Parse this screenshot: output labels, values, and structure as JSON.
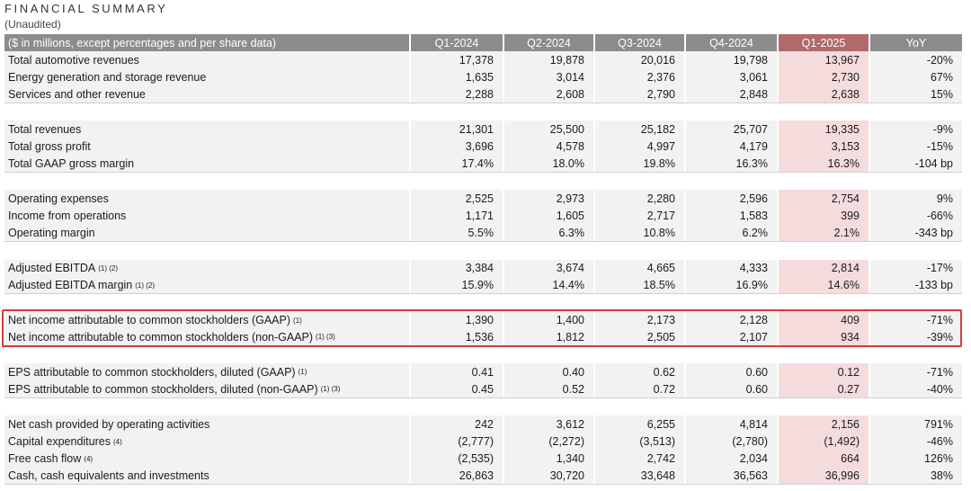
{
  "title": "FINANCIAL SUMMARY",
  "subtitle": "(Unaudited)",
  "header": {
    "label": "($ in millions, except percentages and per share data)",
    "cols": [
      "Q1-2024",
      "Q2-2024",
      "Q3-2024",
      "Q4-2024",
      "Q1-2025",
      "YoY"
    ]
  },
  "groups": [
    [
      {
        "label": "Total automotive revenues",
        "sup": "",
        "v": [
          "17,378",
          "19,878",
          "20,016",
          "19,798",
          "13,967",
          "-20%"
        ]
      },
      {
        "label": "Energy generation and storage revenue",
        "sup": "",
        "v": [
          "1,635",
          "3,014",
          "2,376",
          "3,061",
          "2,730",
          "67%"
        ]
      },
      {
        "label": "Services and other revenue",
        "sup": "",
        "v": [
          "2,288",
          "2,608",
          "2,790",
          "2,848",
          "2,638",
          "15%"
        ]
      }
    ],
    [
      {
        "label": "Total revenues",
        "sup": "",
        "v": [
          "21,301",
          "25,500",
          "25,182",
          "25,707",
          "19,335",
          "-9%"
        ]
      },
      {
        "label": "Total gross profit",
        "sup": "",
        "v": [
          "3,696",
          "4,578",
          "4,997",
          "4,179",
          "3,153",
          "-15%"
        ]
      },
      {
        "label": "Total GAAP gross margin",
        "sup": "",
        "v": [
          "17.4%",
          "18.0%",
          "19.8%",
          "16.3%",
          "16.3%",
          "-104 bp"
        ]
      }
    ],
    [
      {
        "label": "Operating expenses",
        "sup": "",
        "v": [
          "2,525",
          "2,973",
          "2,280",
          "2,596",
          "2,754",
          "9%"
        ]
      },
      {
        "label": "Income from operations",
        "sup": "",
        "v": [
          "1,171",
          "1,605",
          "2,717",
          "1,583",
          "399",
          "-66%"
        ]
      },
      {
        "label": "Operating margin",
        "sup": "",
        "v": [
          "5.5%",
          "6.3%",
          "10.8%",
          "6.2%",
          "2.1%",
          "-343 bp"
        ]
      }
    ],
    [
      {
        "label": "Adjusted EBITDA",
        "sup": "(1) (2)",
        "v": [
          "3,384",
          "3,674",
          "4,665",
          "4,333",
          "2,814",
          "-17%"
        ]
      },
      {
        "label": "Adjusted EBITDA margin",
        "sup": "(1) (2)",
        "v": [
          "15.9%",
          "14.4%",
          "18.5%",
          "16.9%",
          "14.6%",
          "-133 bp"
        ]
      }
    ],
    [
      {
        "label": "Net income attributable to common stockholders (GAAP)",
        "sup": "(1)",
        "v": [
          "1,390",
          "1,400",
          "2,173",
          "2,128",
          "409",
          "-71%"
        ]
      },
      {
        "label": "Net income attributable to common stockholders (non-GAAP)",
        "sup": "(1) (3)",
        "v": [
          "1,536",
          "1,812",
          "2,505",
          "2,107",
          "934",
          "-39%"
        ]
      }
    ],
    [
      {
        "label": "EPS attributable to common stockholders, diluted (GAAP)",
        "sup": "(1)",
        "v": [
          "0.41",
          "0.40",
          "0.62",
          "0.60",
          "0.12",
          "-71%"
        ]
      },
      {
        "label": "EPS attributable to common stockholders, diluted (non-GAAP)",
        "sup": "(1) (3)",
        "v": [
          "0.45",
          "0.52",
          "0.72",
          "0.60",
          "0.27",
          "-40%"
        ]
      }
    ],
    [
      {
        "label": "Net cash provided by operating activities",
        "sup": "",
        "v": [
          "242",
          "3,612",
          "6,255",
          "4,814",
          "2,156",
          "791%"
        ]
      },
      {
        "label": "Capital expenditures",
        "sup": "(4)",
        "v": [
          "(2,777)",
          "(2,272)",
          "(3,513)",
          "(2,780)",
          "(1,492)",
          "-46%"
        ]
      },
      {
        "label": "Free cash flow",
        "sup": "(4)",
        "v": [
          "(2,535)",
          "1,340",
          "2,742",
          "2,034",
          "664",
          "126%"
        ]
      },
      {
        "label": "Cash, cash equivalents and investments",
        "sup": "",
        "v": [
          "26,863",
          "30,720",
          "33,648",
          "36,563",
          "36,996",
          "38%"
        ]
      }
    ]
  ]
}
